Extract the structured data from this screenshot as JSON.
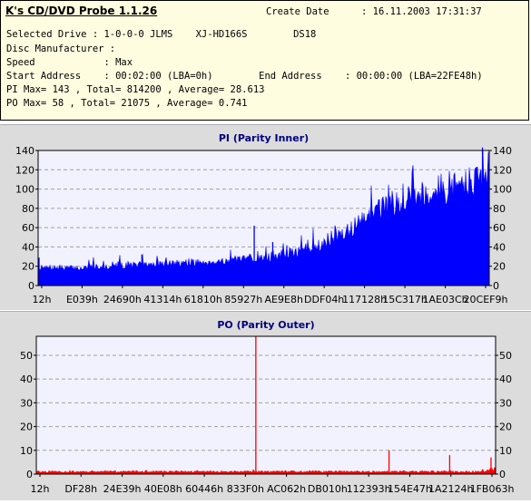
{
  "header": {
    "app_title": "K's CD/DVD Probe 1.1.26",
    "create_date_label": "Create Date",
    "create_date_value": ": 16.11.2003 17:31:37",
    "lines": [
      "Selected Drive : 1-0-0-0 JLMS    XJ-HD166S        DS18",
      "Disc Manufacturer :",
      "Speed            : Max",
      "Start Address    : 00:02:00 (LBA=0h)        End Address    : 00:00:00 (LBA=22FE48h)",
      "PI Max= 143 , Total= 814200 , Average= 28.613",
      "PO Max= 58 , Total= 21075 , Average= 0.741"
    ]
  },
  "chart_data": [
    {
      "type": "area",
      "title": "PI (Parity Inner)",
      "color": "#0000ff",
      "ylim": [
        0,
        140
      ],
      "yticks": [
        0,
        20,
        40,
        60,
        80,
        100,
        120,
        140
      ],
      "xtick_labels": [
        "12h",
        "E039h",
        "24690h",
        "41314h",
        "61810h",
        "85927h",
        "AE9E8h",
        "DDF04h",
        "117128h",
        "15C317h",
        "1AE03Ch",
        "20CEF9h"
      ],
      "grid": true,
      "series": [
        {
          "baseline": [
            18,
            18,
            18,
            18,
            20,
            20,
            21,
            21,
            22,
            23,
            23,
            24,
            25,
            26,
            27,
            29,
            31,
            34,
            38,
            44,
            52,
            60,
            70,
            80,
            88,
            93,
            96,
            100,
            104,
            108,
            118
          ],
          "spikes": [
            {
              "pos": 0.002,
              "value": 29
            },
            {
              "pos": 0.23,
              "value": 32
            },
            {
              "pos": 0.479,
              "value": 62
            },
            {
              "pos": 0.52,
              "value": 45
            },
            {
              "pos": 0.77,
              "value": 62
            },
            {
              "pos": 0.985,
              "value": 143
            }
          ]
        }
      ]
    },
    {
      "type": "area",
      "title": "PO (Parity Outer)",
      "color": "#ff0000",
      "ylim": [
        0,
        58
      ],
      "yticks": [
        0,
        10,
        20,
        30,
        40,
        50
      ],
      "xtick_labels": [
        "12h",
        "DF28h",
        "24E39h",
        "40E08h",
        "60446h",
        "833F0h",
        "AC062h",
        "DB010h",
        "112393h",
        "154E47h",
        "1A2124h",
        "1FB063h"
      ],
      "grid": true,
      "series": [
        {
          "baseline": [
            1,
            1,
            1,
            1,
            1,
            1,
            1,
            1,
            1,
            1,
            1,
            1,
            1,
            1,
            1,
            1,
            1,
            1,
            1,
            1,
            1,
            1,
            1,
            1,
            1,
            1,
            1,
            1,
            1,
            1,
            2
          ],
          "spikes": [
            {
              "pos": 0.478,
              "value": 58
            },
            {
              "pos": 0.768,
              "value": 10
            },
            {
              "pos": 0.9,
              "value": 8
            },
            {
              "pos": 0.99,
              "value": 7
            }
          ]
        }
      ]
    }
  ]
}
